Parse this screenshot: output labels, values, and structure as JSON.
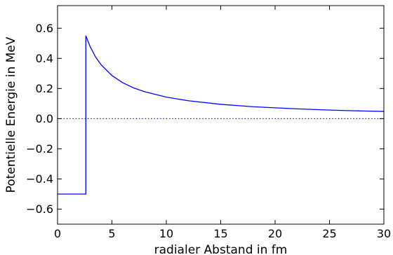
{
  "chart_data": {
    "type": "line",
    "xlabel": "radialer Abstand in fm",
    "ylabel": "Potentielle Energie in MeV",
    "xlim": [
      0,
      30
    ],
    "ylim": [
      -0.7,
      0.75
    ],
    "x_ticks": [
      0,
      5,
      10,
      15,
      20,
      25,
      30
    ],
    "x_tick_labels": [
      "0",
      "5",
      "10",
      "15",
      "20",
      "25",
      "30"
    ],
    "y_ticks": [
      -0.6,
      -0.4,
      -0.2,
      0.0,
      0.2,
      0.4,
      0.6
    ],
    "y_tick_labels": [
      "−0.6",
      "−0.4",
      "−0.2",
      "0.0",
      "0.2",
      "0.4",
      "0.6"
    ],
    "grid": false,
    "series": [
      {
        "color": "#0000ff",
        "style": "solid",
        "x": [
          0,
          2.6,
          2.6,
          3,
          3.5,
          4,
          5,
          6,
          7,
          8,
          10,
          12,
          15,
          18,
          20,
          22,
          25,
          28,
          30
        ],
        "y": [
          -0.5,
          -0.5,
          0.55,
          0.477,
          0.409,
          0.358,
          0.286,
          0.238,
          0.204,
          0.179,
          0.143,
          0.119,
          0.095,
          0.079,
          0.072,
          0.065,
          0.057,
          0.051,
          0.048
        ]
      },
      {
        "color": "#0000ff",
        "style": "dotted",
        "x": [
          0,
          30
        ],
        "y": [
          0,
          0
        ]
      }
    ]
  }
}
